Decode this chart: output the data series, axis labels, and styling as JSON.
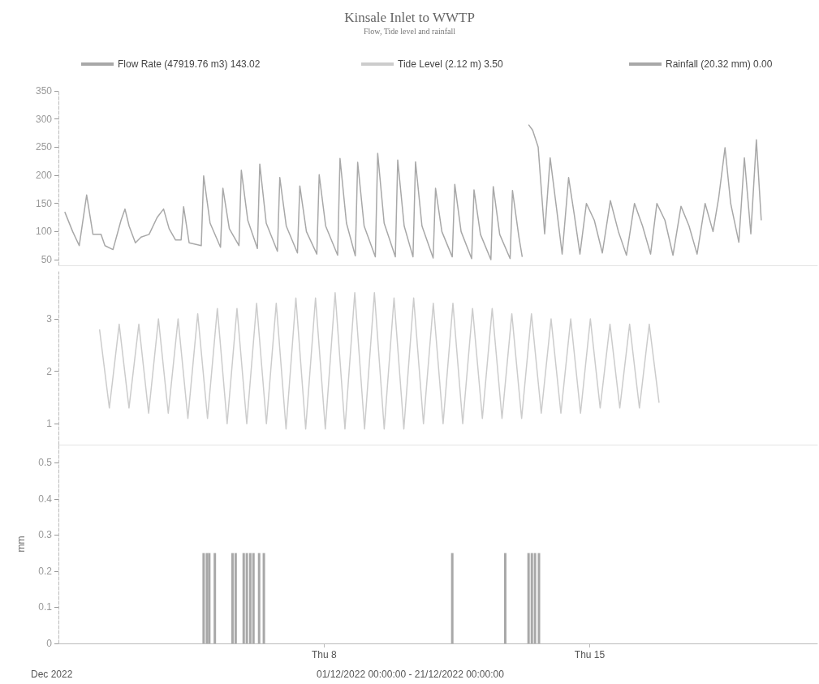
{
  "chart_data": [
    {
      "type": "line",
      "title": "Kinsale Inlet to WWTP",
      "subtitle": "Flow, Tide level and rainfall",
      "xlim": [
        "2022-12-01",
        "2022-12-21"
      ],
      "tick_labels": "y",
      "ylim": [
        40,
        350
      ],
      "yticks": [
        50,
        100,
        150,
        200,
        250,
        300,
        350
      ],
      "legend": "top left",
      "series": [
        {
          "name": "Flow Rate (47919.76 m3) 143.02",
          "color": "#a8a8a8",
          "x": [
            "2022-12-01T04:00",
            "2022-12-01T09:00",
            "2022-12-01T13:10",
            "2022-12-01T17:50",
            "2022-12-01T21:50",
            "2022-12-02T02:55",
            "2022-12-02T05:25",
            "2022-12-02T10:30",
            "2022-12-02T15:35",
            "2022-12-02T18:05",
            "2022-12-02T20:40",
            "2022-12-03T00:40",
            "2022-12-03T04:15",
            "2022-12-03T09:20",
            "2022-12-03T14:25",
            "2022-12-03T18:30",
            "2022-12-03T22:00",
            "2022-12-04T02:05",
            "2022-12-04T05:35",
            "2022-12-04T07:10",
            "2022-12-04T10:40",
            "2022-12-04T18:20",
            "2022-12-04T19:50",
            "2022-12-04T23:55",
            "2022-12-05T06:30",
            "2022-12-05T08:00",
            "2022-12-05T12:05",
            "2022-12-05T18:10",
            "2022-12-05T19:40",
            "2022-12-05T23:45",
            "2022-12-06T05:50",
            "2022-12-06T07:20",
            "2022-12-06T11:25",
            "2022-12-06T18:30",
            "2022-12-06T20:00",
            "2022-12-07T00:05",
            "2022-12-07T07:10",
            "2022-12-07T08:40",
            "2022-12-07T12:50",
            "2022-12-07T19:25",
            "2022-12-07T20:55",
            "2022-12-08T01:00",
            "2022-12-08T08:35",
            "2022-12-08T10:05",
            "2022-12-08T14:10",
            "2022-12-08T19:45",
            "2022-12-08T21:15",
            "2022-12-09T01:20",
            "2022-12-09T08:25",
            "2022-12-09T09:55",
            "2022-12-09T14:00",
            "2022-12-09T21:05",
            "2022-12-09T22:35",
            "2022-12-10T02:40",
            "2022-12-10T08:15",
            "2022-12-10T09:50",
            "2022-12-10T13:55",
            "2022-12-10T21:00",
            "2022-12-10T22:30",
            "2022-12-11T02:30",
            "2022-12-11T09:05",
            "2022-12-11T10:40",
            "2022-12-11T14:40",
            "2022-12-11T21:20",
            "2022-12-11T22:50",
            "2022-12-12T02:55",
            "2022-12-12T09:30",
            "2022-12-12T11:00",
            "2022-12-12T15:05",
            "2022-12-12T21:40",
            "2022-12-12T23:10",
            "2022-12-13T03:15",
            "2022-12-13T05:20",
            "2022-12-13T07:50",
            "2022-12-13T09:20",
            "2022-12-13T11:55",
            "2022-12-13T15:25",
            "2022-12-13T19:30",
            "2022-12-13T23:00",
            "2022-12-14T03:05",
            "2022-12-14T06:35",
            "2022-12-14T10:40",
            "2022-12-14T14:15",
            "2022-12-14T17:50",
            "2022-12-14T21:55",
            "2022-12-15T02:55",
            "2022-12-15T08:00",
            "2022-12-15T13:05",
            "2022-12-15T18:10",
            "2022-12-15T23:15",
            "2022-12-16T04:20",
            "2022-12-16T09:25",
            "2022-12-16T14:30",
            "2022-12-16T18:30",
            "2022-12-16T23:35",
            "2022-12-17T04:40",
            "2022-12-17T09:45",
            "2022-12-17T14:50",
            "2022-12-17T19:55",
            "2022-12-18T01:00",
            "2022-12-18T06:00",
            "2022-12-18T09:35",
            "2022-12-18T13:35",
            "2022-12-18T17:10",
            "2022-12-18T22:20",
            "2022-12-19T01:50",
            "2022-12-19T05:55",
            "2022-12-19T09:25",
            "2022-12-19T12:30"
          ],
          "values": [
            135,
            100,
            75,
            165,
            95,
            95,
            75,
            68,
            120,
            140,
            110,
            80,
            90,
            95,
            125,
            140,
            105,
            85,
            85,
            144,
            80,
            75,
            199,
            115,
            72,
            177,
            105,
            75,
            209,
            120,
            70,
            220,
            115,
            65,
            196,
            110,
            62,
            181,
            100,
            60,
            201,
            110,
            58,
            230,
            115,
            57,
            223,
            110,
            55,
            239,
            115,
            55,
            227,
            110,
            55,
            224,
            110,
            53,
            177,
            100,
            55,
            184,
            100,
            52,
            174,
            95,
            50,
            180,
            95,
            52,
            173,
            90,
            55,
            null,
            290,
            280,
            250,
            96,
            231,
            140,
            60,
            196,
            130,
            60,
            150,
            120,
            62,
            155,
            100,
            58,
            150,
            110,
            60,
            150,
            120,
            58,
            145,
            110,
            60,
            150,
            100,
            160,
            249,
            150,
            81,
            231,
            96,
            263,
            120
          ]
        }
      ]
    },
    {
      "type": "line",
      "xlim": [
        "2022-12-01",
        "2022-12-21"
      ],
      "tick_labels": "y",
      "ylim": [
        0.6,
        3.9
      ],
      "yticks": [
        1,
        2,
        3
      ],
      "legend": "top",
      "series": [
        {
          "name": "Tide Level (2.12 m) 3.50",
          "color": "#cccccc",
          "x": [
            "2022-12-02T02:00",
            "2022-12-02T08:12",
            "2022-12-02T14:25",
            "2022-12-02T20:37",
            "2022-12-03T02:50",
            "2022-12-03T09:02",
            "2022-12-03T15:15",
            "2022-12-03T21:27",
            "2022-12-04T03:40",
            "2022-12-04T09:52",
            "2022-12-04T16:05",
            "2022-12-04T22:17",
            "2022-12-05T04:30",
            "2022-12-05T10:42",
            "2022-12-05T16:55",
            "2022-12-05T23:07",
            "2022-12-06T05:20",
            "2022-12-06T11:32",
            "2022-12-06T17:45",
            "2022-12-06T23:57",
            "2022-12-07T06:10",
            "2022-12-07T12:22",
            "2022-12-07T18:35",
            "2022-12-08T00:47",
            "2022-12-08T07:00",
            "2022-12-08T13:12",
            "2022-12-08T19:25",
            "2022-12-09T01:37",
            "2022-12-09T07:50",
            "2022-12-09T14:02",
            "2022-12-09T20:15",
            "2022-12-10T02:27",
            "2022-12-10T08:40",
            "2022-12-10T14:52",
            "2022-12-10T21:05",
            "2022-12-11T03:17",
            "2022-12-11T09:30",
            "2022-12-11T15:42",
            "2022-12-11T21:55",
            "2022-12-12T04:07",
            "2022-12-12T10:20",
            "2022-12-12T16:32",
            "2022-12-12T22:45",
            "2022-12-13T04:57",
            "2022-12-13T11:10",
            "2022-12-13T17:22",
            "2022-12-13T23:35",
            "2022-12-14T05:47",
            "2022-12-14T12:00",
            "2022-12-14T18:12",
            "2022-12-15T00:25",
            "2022-12-15T06:37",
            "2022-12-15T12:50",
            "2022-12-15T19:02",
            "2022-12-16T01:15",
            "2022-12-16T07:27",
            "2022-12-16T13:40",
            "2022-12-16T19:52"
          ],
          "values": [
            2.8,
            1.3,
            2.9,
            1.3,
            2.9,
            1.2,
            3.0,
            1.2,
            3.0,
            1.1,
            3.1,
            1.1,
            3.2,
            1.0,
            3.2,
            1.0,
            3.3,
            1.0,
            3.3,
            0.9,
            3.4,
            0.9,
            3.4,
            0.9,
            3.5,
            0.9,
            3.5,
            0.9,
            3.5,
            0.9,
            3.4,
            0.9,
            3.4,
            1.0,
            3.3,
            1.0,
            3.3,
            1.0,
            3.2,
            1.1,
            3.2,
            1.1,
            3.1,
            1.1,
            3.1,
            1.2,
            3.0,
            1.2,
            3.0,
            1.2,
            3.0,
            1.3,
            2.9,
            1.3,
            2.9,
            1.3,
            2.9,
            1.4
          ]
        }
      ]
    },
    {
      "type": "bar",
      "ylabel": "mm",
      "xlim": [
        "2022-12-01",
        "2022-12-21"
      ],
      "xticks": [
        {
          "value": "2022-12-08",
          "label": "Thu 8"
        },
        {
          "value": "2022-12-15",
          "label": "Thu 15"
        }
      ],
      "ylim": [
        0,
        0.55
      ],
      "yticks": [
        0,
        0.1,
        0.2,
        0.3,
        0.4,
        0.5
      ],
      "legend": "top right",
      "annotations": [
        "Dec 2022",
        "01/12/2022 00:00:00 - 21/12/2022 00:00:00"
      ],
      "series": [
        {
          "name": "Rainfall (20.32 mm) 0.00",
          "color": "#a8a8a8",
          "x": [
            "2022-12-04T19:50",
            "2022-12-04T21:55",
            "2022-12-04T23:25",
            "2022-12-05T02:55",
            "2022-12-05T14:05",
            "2022-12-05T16:05",
            "2022-12-05T21:10",
            "2022-12-05T23:10",
            "2022-12-06T01:20",
            "2022-12-06T03:20",
            "2022-12-06T06:55",
            "2022-12-06T09:55",
            "2022-12-11T09:05",
            "2022-12-12T18:35",
            "2022-12-13T09:20",
            "2022-12-13T11:25",
            "2022-12-13T13:25",
            "2022-12-13T15:55"
          ],
          "values": [
            0.25,
            0.25,
            0.25,
            0.25,
            0.25,
            0.25,
            0.25,
            0.25,
            0.25,
            0.25,
            0.25,
            0.25,
            0.25,
            0.25,
            0.25,
            0.25,
            0.25,
            0.25
          ]
        }
      ]
    }
  ]
}
